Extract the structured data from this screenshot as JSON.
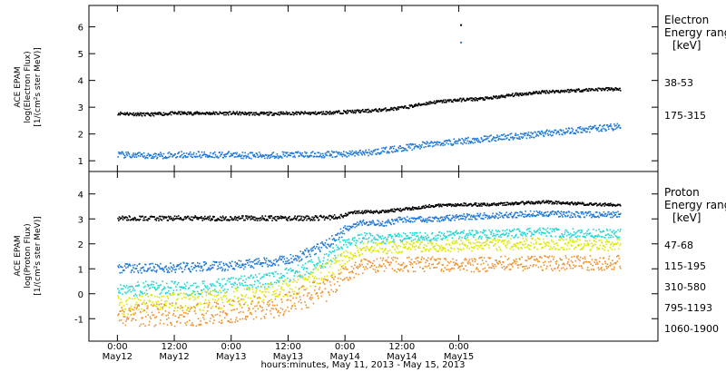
{
  "chart_data": [
    {
      "type": "scatter",
      "title": "",
      "ylabel_lines": [
        "ACE EPAM",
        "log(Electron Flux)",
        "[1/(cm²s ster MeV)]"
      ],
      "ylim": [
        0.6,
        6.8
      ],
      "yticks": [
        1,
        2,
        3,
        4,
        5,
        6
      ],
      "legend_title_lines": [
        "Electron",
        "Energy ranges",
        "[keV]"
      ],
      "series": [
        {
          "name": "38-53",
          "color": "#000000",
          "points": [
            [
              0,
              2.8
            ],
            [
              6,
              2.75
            ],
            [
              12,
              2.8
            ],
            [
              18,
              2.8
            ],
            [
              24,
              2.8
            ],
            [
              30,
              2.78
            ],
            [
              36,
              2.8
            ],
            [
              42,
              2.8
            ],
            [
              48,
              2.85
            ],
            [
              54,
              2.9
            ],
            [
              60,
              3.0
            ],
            [
              66,
              3.2
            ],
            [
              72,
              3.3
            ],
            [
              78,
              3.35
            ],
            [
              84,
              3.5
            ],
            [
              90,
              3.6
            ],
            [
              96,
              3.65
            ],
            [
              102,
              3.7
            ],
            [
              106,
              3.7
            ]
          ]
        },
        {
          "name": "175-315",
          "color": "#1f77d4",
          "points": [
            [
              0,
              1.25
            ],
            [
              6,
              1.2
            ],
            [
              12,
              1.25
            ],
            [
              18,
              1.25
            ],
            [
              24,
              1.25
            ],
            [
              30,
              1.22
            ],
            [
              36,
              1.25
            ],
            [
              42,
              1.25
            ],
            [
              48,
              1.28
            ],
            [
              54,
              1.35
            ],
            [
              60,
              1.5
            ],
            [
              66,
              1.65
            ],
            [
              72,
              1.75
            ],
            [
              78,
              1.85
            ],
            [
              84,
              1.95
            ],
            [
              90,
              2.05
            ],
            [
              96,
              2.15
            ],
            [
              102,
              2.25
            ],
            [
              106,
              2.3
            ]
          ]
        }
      ],
      "spikes": [
        [
          72.3,
          6.1
        ],
        [
          72.3,
          5.45
        ]
      ]
    },
    {
      "type": "scatter",
      "title": "",
      "ylabel_lines": [
        "ACE EPAM",
        "log(Proton Flux)",
        "[1/(cm²s ster MeV)]"
      ],
      "ylim": [
        -1.9,
        4.9
      ],
      "yticks": [
        -1,
        0,
        1,
        2,
        3,
        4
      ],
      "legend_title_lines": [
        "Proton",
        "Energy ranges",
        "[keV]"
      ],
      "series": [
        {
          "name": "47-68",
          "color": "#000000",
          "points": [
            [
              0,
              3.05
            ],
            [
              8,
              3.05
            ],
            [
              16,
              3.05
            ],
            [
              24,
              3.05
            ],
            [
              32,
              3.05
            ],
            [
              40,
              3.05
            ],
            [
              46,
              3.1
            ],
            [
              50,
              3.3
            ],
            [
              54,
              3.3
            ],
            [
              60,
              3.4
            ],
            [
              66,
              3.55
            ],
            [
              72,
              3.6
            ],
            [
              78,
              3.6
            ],
            [
              84,
              3.65
            ],
            [
              90,
              3.7
            ],
            [
              96,
              3.65
            ],
            [
              102,
              3.6
            ],
            [
              106,
              3.6
            ]
          ]
        },
        {
          "name": "115-195",
          "color": "#1f77d4",
          "points": [
            [
              0,
              1.05
            ],
            [
              8,
              1.05
            ],
            [
              16,
              1.1
            ],
            [
              24,
              1.15
            ],
            [
              32,
              1.3
            ],
            [
              38,
              1.5
            ],
            [
              44,
              2.0
            ],
            [
              48,
              2.6
            ],
            [
              52,
              2.9
            ],
            [
              56,
              2.85
            ],
            [
              60,
              3.0
            ],
            [
              66,
              3.0
            ],
            [
              72,
              3.1
            ],
            [
              78,
              3.15
            ],
            [
              84,
              3.2
            ],
            [
              90,
              3.25
            ],
            [
              96,
              3.2
            ],
            [
              102,
              3.2
            ],
            [
              106,
              3.2
            ]
          ]
        },
        {
          "name": "310-580",
          "color": "#22d6d6",
          "points": [
            [
              0,
              0.2
            ],
            [
              8,
              0.25
            ],
            [
              16,
              0.25
            ],
            [
              24,
              0.4
            ],
            [
              32,
              0.6
            ],
            [
              38,
              0.9
            ],
            [
              44,
              1.4
            ],
            [
              48,
              2.0
            ],
            [
              52,
              2.3
            ],
            [
              56,
              2.2
            ],
            [
              60,
              2.3
            ],
            [
              66,
              2.3
            ],
            [
              72,
              2.4
            ],
            [
              78,
              2.4
            ],
            [
              84,
              2.45
            ],
            [
              90,
              2.5
            ],
            [
              96,
              2.45
            ],
            [
              102,
              2.45
            ],
            [
              106,
              2.45
            ]
          ]
        },
        {
          "name": "795-1193",
          "color": "#dde800",
          "points": [
            [
              0,
              -0.45
            ],
            [
              8,
              -0.35
            ],
            [
              16,
              -0.3
            ],
            [
              24,
              -0.15
            ],
            [
              32,
              0.05
            ],
            [
              38,
              0.4
            ],
            [
              44,
              0.9
            ],
            [
              48,
              1.5
            ],
            [
              52,
              1.85
            ],
            [
              56,
              1.85
            ],
            [
              60,
              1.9
            ],
            [
              66,
              1.95
            ],
            [
              72,
              1.95
            ],
            [
              78,
              2.0
            ],
            [
              84,
              2.0
            ],
            [
              90,
              2.05
            ],
            [
              96,
              2.0
            ],
            [
              102,
              2.0
            ],
            [
              106,
              2.0
            ]
          ]
        },
        {
          "name": "1060-1900",
          "color": "#f0902a",
          "points": [
            [
              0,
              -0.9
            ],
            [
              8,
              -0.8
            ],
            [
              16,
              -0.8
            ],
            [
              24,
              -0.7
            ],
            [
              32,
              -0.5
            ],
            [
              38,
              -0.2
            ],
            [
              44,
              0.2
            ],
            [
              48,
              0.8
            ],
            [
              52,
              1.15
            ],
            [
              56,
              1.2
            ],
            [
              60,
              1.2
            ],
            [
              66,
              1.2
            ],
            [
              72,
              1.2
            ],
            [
              78,
              1.2
            ],
            [
              84,
              1.25
            ],
            [
              90,
              1.25
            ],
            [
              96,
              1.25
            ],
            [
              102,
              1.25
            ],
            [
              106,
              1.25
            ]
          ]
        }
      ]
    }
  ],
  "xaxis": {
    "label": "hours:minutes, May 11, 2013 - May 15, 2013",
    "range_hours": [
      -6,
      114
    ],
    "ticks": [
      {
        "hour": 0,
        "time": "0:00",
        "date": "May12"
      },
      {
        "hour": 12,
        "time": "12:00",
        "date": "May12"
      },
      {
        "hour": 24,
        "time": "0:00",
        "date": "May13"
      },
      {
        "hour": 36,
        "time": "12:00",
        "date": "May13"
      },
      {
        "hour": 48,
        "time": "0:00",
        "date": "May14"
      },
      {
        "hour": 60,
        "time": "12:00",
        "date": "May14"
      },
      {
        "hour": 72,
        "time": "0:00",
        "date": "May15"
      }
    ]
  }
}
